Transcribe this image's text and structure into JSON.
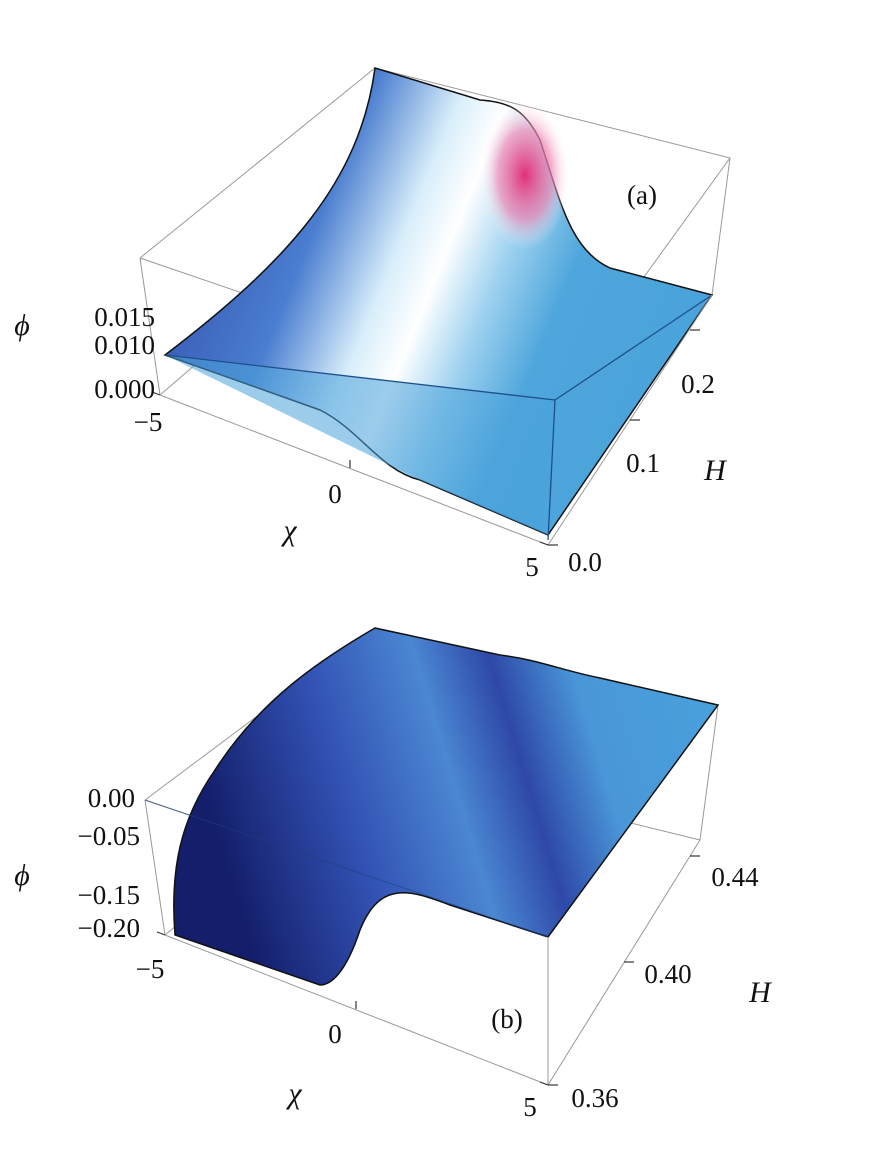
{
  "panels": [
    {
      "label": "(a)",
      "z_axis": {
        "label": "ϕ",
        "ticks": [
          "0.015",
          "0.010",
          "0.000"
        ]
      },
      "x_axis": {
        "label": "χ",
        "ticks": [
          "−5",
          "0",
          "5"
        ]
      },
      "y_axis": {
        "label": "H",
        "ticks": [
          "0.0",
          "0.1",
          "0.2"
        ]
      }
    },
    {
      "label": "(b)",
      "z_axis": {
        "label": "ϕ",
        "ticks": [
          "0.00",
          "−0.05",
          "−0.15",
          "−0.20"
        ]
      },
      "x_axis": {
        "label": "χ",
        "ticks": [
          "−5",
          "0",
          "5"
        ]
      },
      "y_axis": {
        "label": "H",
        "ticks": [
          "0.36",
          "0.40",
          "0.44"
        ]
      }
    }
  ]
}
